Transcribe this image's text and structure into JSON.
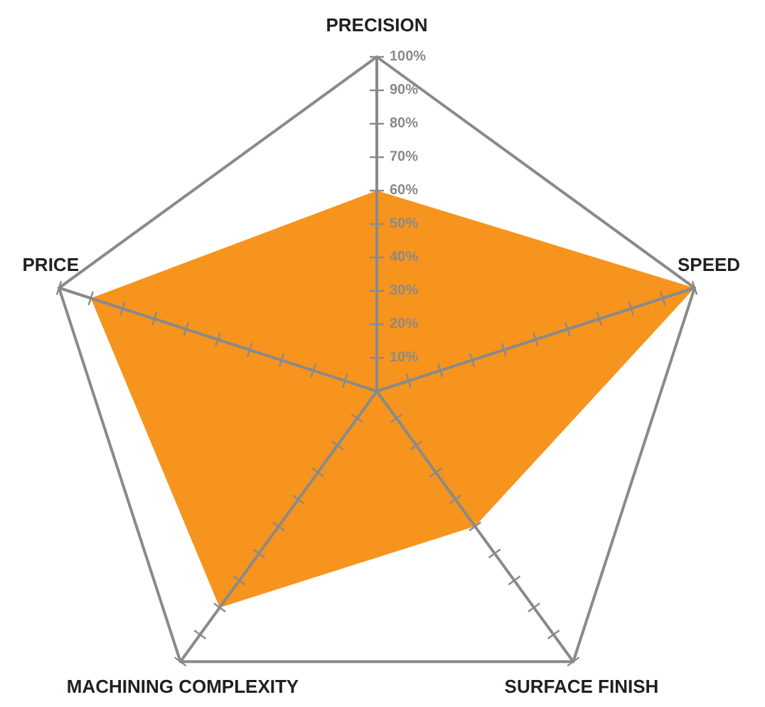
{
  "chart_data": {
    "type": "radar",
    "categories": [
      "PRECISION",
      "SPEED",
      "SURFACE FINISH",
      "MACHINING COMPLEXITY",
      "PRICE"
    ],
    "series": [
      {
        "color": "#f7941d",
        "values": [
          60,
          100,
          50,
          80,
          90
        ]
      }
    ],
    "ylim": [
      0,
      100
    ],
    "yticks": [
      {
        "value": 10,
        "label": "10%"
      },
      {
        "value": 20,
        "label": "20%"
      },
      {
        "value": 30,
        "label": "30%"
      },
      {
        "value": 40,
        "label": "40%"
      },
      {
        "value": 50,
        "label": "50%"
      },
      {
        "value": 60,
        "label": "60%"
      },
      {
        "value": 70,
        "label": "70%"
      },
      {
        "value": 80,
        "label": "80%"
      },
      {
        "value": 90,
        "label": "90%"
      },
      {
        "value": 100,
        "label": "100%"
      }
    ]
  }
}
